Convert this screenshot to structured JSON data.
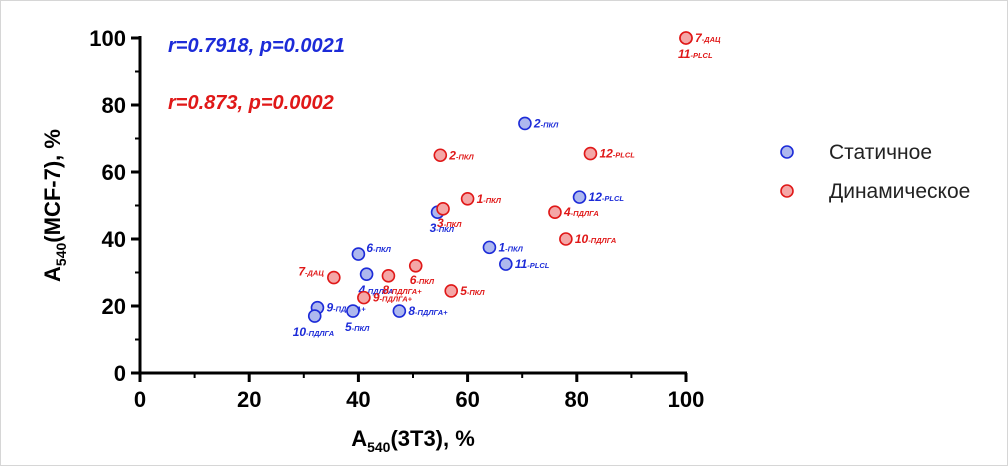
{
  "chart_data": {
    "type": "scatter",
    "xlabel": {
      "base": "A",
      "sub": "540",
      "rest": "(3T3), %"
    },
    "ylabel": {
      "base": "A",
      "sub": "540",
      "rest": "(MCF-7), %"
    },
    "xlim": [
      0,
      100
    ],
    "ylim": [
      0,
      100
    ],
    "xticks": [
      0,
      20,
      40,
      60,
      80,
      100
    ],
    "yticks": [
      0,
      20,
      40,
      60,
      80,
      100
    ],
    "annotations": [
      {
        "text": "r=0.7918, p=0.0021",
        "color": "#1c2bd8"
      },
      {
        "text": "r=0.873, p=0.0002",
        "color": "#e01818"
      }
    ],
    "legend_position": "right",
    "series": [
      {
        "name": "Статичное",
        "color": "#1c2bd8",
        "fill": "#aeb8ee",
        "points": [
          {
            "x": 70.5,
            "y": 74.5,
            "num": "2",
            "suffix": "-ПКЛ",
            "anchor": "right"
          },
          {
            "x": 80.5,
            "y": 52.5,
            "num": "12",
            "suffix": "-PLCL",
            "anchor": "right"
          },
          {
            "x": 54.5,
            "y": 48.0,
            "num": "3",
            "suffix": "-ПКЛ",
            "anchor": "below"
          },
          {
            "x": 64.0,
            "y": 37.5,
            "num": "1",
            "suffix": "-ПКЛ",
            "anchor": "right"
          },
          {
            "x": 67.0,
            "y": 32.5,
            "num": "11",
            "suffix": "-PLCL",
            "anchor": "right"
          },
          {
            "x": 40.0,
            "y": 35.5,
            "num": "6",
            "suffix": "-ПКЛ",
            "anchor": "upright"
          },
          {
            "x": 41.5,
            "y": 29.5,
            "num": "4",
            "suffix": "-ПДЛГА",
            "anchor": "below"
          },
          {
            "x": 32.5,
            "y": 19.5,
            "num": "9",
            "suffix": "-ПДЛГА+",
            "anchor": "right"
          },
          {
            "x": 39.0,
            "y": 18.5,
            "num": "5",
            "suffix": "-ПКЛ",
            "anchor": "below"
          },
          {
            "x": 47.5,
            "y": 18.5,
            "num": "8",
            "suffix": "-ПДЛГА+",
            "anchor": "right"
          },
          {
            "x": 32.0,
            "y": 17.0,
            "num": "10",
            "suffix": "-ПДЛГА",
            "anchor": "belowleft"
          }
        ]
      },
      {
        "name": "Динамическое",
        "color": "#e01818",
        "fill": "#f4a7a7",
        "points": [
          {
            "x": 100.0,
            "y": 100.0,
            "num": "7",
            "suffix": "-ДАЦ",
            "anchor": "right"
          },
          {
            "x": 100.0,
            "y": 100.0,
            "num": "11",
            "suffix": "-PLCL",
            "anchor": "below"
          },
          {
            "x": 55.0,
            "y": 65.0,
            "num": "2",
            "suffix": "-ПКЛ",
            "anchor": "right"
          },
          {
            "x": 82.5,
            "y": 65.5,
            "num": "12",
            "suffix": "-PLCL",
            "anchor": "right"
          },
          {
            "x": 60.0,
            "y": 52.0,
            "num": "1",
            "suffix": "-ПКЛ",
            "anchor": "right"
          },
          {
            "x": 55.5,
            "y": 49.0,
            "num": "3",
            "suffix": "-ПКЛ",
            "anchor": "belowright"
          },
          {
            "x": 76.0,
            "y": 48.0,
            "num": "4",
            "suffix": "-ПДЛГА",
            "anchor": "right"
          },
          {
            "x": 78.0,
            "y": 40.0,
            "num": "10",
            "suffix": "-ПДЛГА",
            "anchor": "right"
          },
          {
            "x": 50.5,
            "y": 32.0,
            "num": "6",
            "suffix": "-ПКЛ",
            "anchor": "belowright"
          },
          {
            "x": 35.5,
            "y": 28.5,
            "num": "7",
            "suffix": "-ДАЦ",
            "anchor": "left"
          },
          {
            "x": 45.5,
            "y": 29.0,
            "num": "8",
            "suffix": "-ПДЛГА+",
            "anchor": "belowright"
          },
          {
            "x": 57.0,
            "y": 24.5,
            "num": "5",
            "suffix": "-ПКЛ",
            "anchor": "right"
          },
          {
            "x": 41.0,
            "y": 22.5,
            "num": "9",
            "suffix": "-ПДЛГА+",
            "anchor": "right"
          }
        ]
      }
    ]
  }
}
